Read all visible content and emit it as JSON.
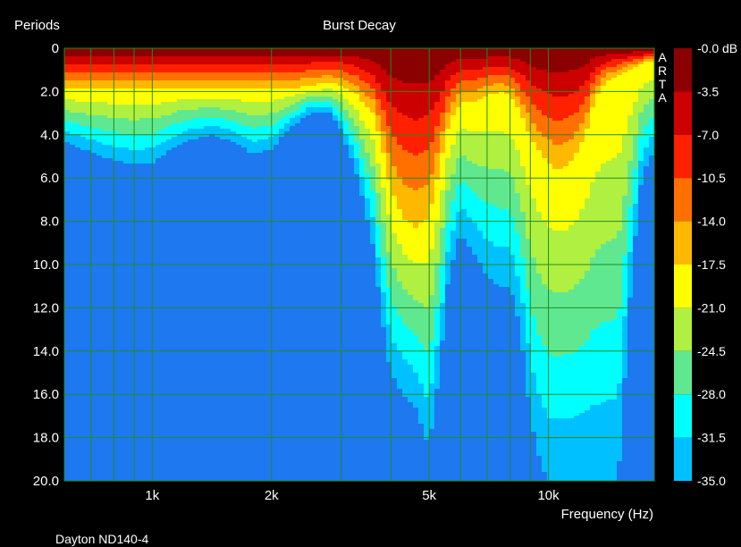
{
  "chart_data": {
    "type": "heatmap",
    "title": "Burst Decay",
    "subtitle": "Dayton ND140-4",
    "ylabel": "Periods",
    "xlabel": "Frequency (Hz)",
    "watermark": "ARTA",
    "x_scale": "log",
    "xlim": [
      600,
      18500
    ],
    "ylim": [
      0,
      20
    ],
    "y_reversed": true,
    "x_ticks": [
      {
        "value": 1000,
        "label": "1k"
      },
      {
        "value": 2000,
        "label": "2k"
      },
      {
        "value": 5000,
        "label": "5k"
      },
      {
        "value": 10000,
        "label": "10k"
      }
    ],
    "y_ticks": [
      {
        "value": 0,
        "label": "0"
      },
      {
        "value": 2,
        "label": "2.0"
      },
      {
        "value": 4,
        "label": "4.0"
      },
      {
        "value": 6,
        "label": "6.0"
      },
      {
        "value": 8,
        "label": "8.0"
      },
      {
        "value": 10,
        "label": "10.0"
      },
      {
        "value": 12,
        "label": "12.0"
      },
      {
        "value": 14,
        "label": "14.0"
      },
      {
        "value": 16,
        "label": "16.0"
      },
      {
        "value": 18,
        "label": "18.0"
      },
      {
        "value": 20,
        "label": "20.0"
      }
    ],
    "grid": true,
    "grid_color": "#228b22",
    "colorbar": {
      "unit": "dB",
      "labels": [
        "-0.0 dB",
        "-3.5",
        "-7.0",
        "-10.5",
        "-14.0",
        "-17.5",
        "-21.0",
        "-24.5",
        "-28.0",
        "-31.5",
        "-35.0"
      ],
      "levels": [
        {
          "from": 0.0,
          "to": -3.5,
          "color": "#8b0000"
        },
        {
          "from": -3.5,
          "to": -7.0,
          "color": "#cc0000"
        },
        {
          "from": -7.0,
          "to": -10.5,
          "color": "#ff2000"
        },
        {
          "from": -10.5,
          "to": -14.0,
          "color": "#ff7000"
        },
        {
          "from": -14.0,
          "to": -17.5,
          "color": "#ffb800"
        },
        {
          "from": -17.5,
          "to": -21.0,
          "color": "#ffff00"
        },
        {
          "from": -21.0,
          "to": -24.5,
          "color": "#b0f040"
        },
        {
          "from": -24.5,
          "to": -28.0,
          "color": "#60e890"
        },
        {
          "from": -28.0,
          "to": -31.5,
          "color": "#00ffff"
        },
        {
          "from": -31.5,
          "to": -35.0,
          "color": "#00c0ff"
        }
      ],
      "floor_color": "#1e78f0"
    },
    "decay_profile": {
      "frequency_hz": [
        600,
        700,
        800,
        900,
        1000,
        1200,
        1400,
        1600,
        1800,
        2000,
        2200,
        2500,
        2800,
        3000,
        3300,
        3600,
        3800,
        4000,
        4300,
        4600,
        5000,
        5300,
        5600,
        6000,
        6500,
        7000,
        7500,
        8000,
        8500,
        9000,
        9500,
        10000,
        10500,
        11000,
        11500,
        12000,
        12500,
        13000,
        14000,
        15000,
        16000,
        17000,
        18000
      ],
      "periods_to_minus_35db": [
        4.3,
        4.8,
        5.2,
        5.4,
        5.3,
        4.3,
        4.0,
        4.3,
        4.9,
        4.7,
        3.8,
        3.0,
        3.0,
        3.8,
        6.0,
        9.0,
        12.5,
        15.0,
        16.0,
        16.5,
        18.5,
        15.0,
        10.5,
        8.5,
        9.5,
        10.5,
        11.0,
        11.0,
        13.0,
        17.0,
        19.0,
        20.0,
        20.0,
        20.0,
        20.0,
        20.0,
        20.0,
        20.0,
        20.0,
        20.0,
        12.0,
        6.5,
        5.0
      ],
      "periods_to_minus_17_5db": [
        1.9,
        1.9,
        1.9,
        1.9,
        1.9,
        1.9,
        1.9,
        1.9,
        1.9,
        1.9,
        1.9,
        1.7,
        1.6,
        1.7,
        2.2,
        3.0,
        4.5,
        6.5,
        7.8,
        8.3,
        7.8,
        5.6,
        3.5,
        2.5,
        2.5,
        2.2,
        2.0,
        2.2,
        3.0,
        4.0,
        4.8,
        5.3,
        5.6,
        5.5,
        5.2,
        4.6,
        3.8,
        2.5,
        1.5,
        1.3,
        1.0,
        0.8,
        0.6
      ]
    }
  }
}
